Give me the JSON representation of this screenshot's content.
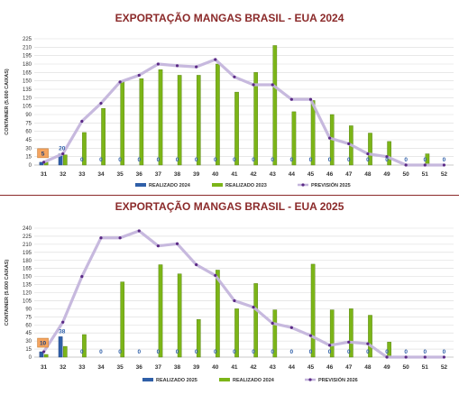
{
  "chart_data": [
    {
      "type": "bar",
      "title": "EXPORTAÇÃO MANGAS BRASIL - EUA 2024",
      "ylabel": "CONTAINER (5.600 CAIXAS)",
      "xlabel": "",
      "ylim": [
        0,
        225
      ],
      "yticks": [
        0,
        15,
        30,
        45,
        60,
        75,
        90,
        105,
        120,
        135,
        150,
        165,
        180,
        195,
        210,
        225
      ],
      "categories": [
        "31",
        "32",
        "33",
        "34",
        "35",
        "36",
        "37",
        "38",
        "39",
        "40",
        "41",
        "42",
        "43",
        "44",
        "45",
        "46",
        "47",
        "48",
        "49",
        "50",
        "51",
        "52"
      ],
      "series": [
        {
          "name": "REALIZADO 2024",
          "kind": "bar",
          "color": "#2f5fa8",
          "values": [
            5,
            20,
            0,
            0,
            0,
            0,
            0,
            0,
            0,
            0,
            0,
            0,
            0,
            0,
            0,
            0,
            0,
            0,
            0,
            0,
            0,
            0
          ],
          "labels": [
            "5",
            "20",
            "0",
            "0",
            "0",
            "0",
            "0",
            "0",
            "0",
            "0",
            "0",
            "0",
            "0",
            "0",
            "0",
            "0",
            "0",
            "0",
            "0",
            "0",
            "0",
            "0"
          ]
        },
        {
          "name": "REALIZADO 2023",
          "kind": "bar",
          "color": "#7cb518",
          "values": [
            5,
            18,
            58,
            101,
            150,
            154,
            170,
            160,
            160,
            180,
            130,
            165,
            213,
            95,
            115,
            90,
            70,
            57,
            42,
            0,
            20,
            0
          ]
        },
        {
          "name": "PREVISIÓN 2025",
          "kind": "line",
          "color": "#c4b5dc",
          "marker_color": "#5b2a86",
          "values": [
            5,
            20,
            78,
            110,
            148,
            160,
            180,
            177,
            175,
            188,
            157,
            143,
            143,
            117,
            117,
            48,
            38,
            20,
            15,
            0,
            0,
            0
          ]
        }
      ],
      "data_labels": {
        "boxed": "5",
        "blue_text": "20"
      },
      "legend": "bottom-center"
    },
    {
      "type": "bar",
      "title": "EXPORTAÇÃO MANGAS BRASIL - EUA 2025",
      "ylabel": "CONTAINER (5.600 CAIXAS)",
      "xlabel": "",
      "ylim": [
        0,
        240
      ],
      "yticks": [
        0,
        15,
        30,
        45,
        60,
        75,
        90,
        105,
        120,
        135,
        150,
        165,
        180,
        195,
        210,
        225,
        240
      ],
      "categories": [
        "31",
        "32",
        "33",
        "34",
        "35",
        "36",
        "37",
        "38",
        "39",
        "40",
        "41",
        "42",
        "43",
        "44",
        "45",
        "46",
        "47",
        "48",
        "49",
        "50",
        "51",
        "52"
      ],
      "series": [
        {
          "name": "REALIZADO 2025",
          "kind": "bar",
          "color": "#2f5fa8",
          "values": [
            10,
            38,
            0,
            0,
            0,
            0,
            0,
            0,
            0,
            0,
            0,
            0,
            0,
            0,
            0,
            0,
            0,
            0,
            0,
            0,
            0,
            0
          ],
          "labels": [
            "10",
            "38",
            "0",
            "0",
            "0",
            "0",
            "0",
            "0",
            "0",
            "0",
            "0",
            "0",
            "0",
            "0",
            "0",
            "0",
            "0",
            "0",
            "0",
            "0",
            "0",
            "0"
          ]
        },
        {
          "name": "REALIZADO 2024",
          "kind": "bar",
          "color": "#7cb518",
          "values": [
            5,
            20,
            42,
            0,
            140,
            0,
            172,
            155,
            70,
            162,
            90,
            137,
            88,
            0,
            173,
            88,
            90,
            78,
            28,
            0,
            0,
            0
          ]
        },
        {
          "name": "PREVISIÓN 2026",
          "kind": "line",
          "color": "#c4b5dc",
          "marker_color": "#5b2a86",
          "values": [
            10,
            65,
            150,
            222,
            222,
            235,
            207,
            211,
            172,
            152,
            105,
            93,
            63,
            55,
            40,
            22,
            28,
            25,
            0,
            0,
            0,
            0
          ]
        }
      ],
      "data_labels": {
        "boxed": "10",
        "blue_text": "38"
      },
      "legend": "bottom-center"
    }
  ]
}
